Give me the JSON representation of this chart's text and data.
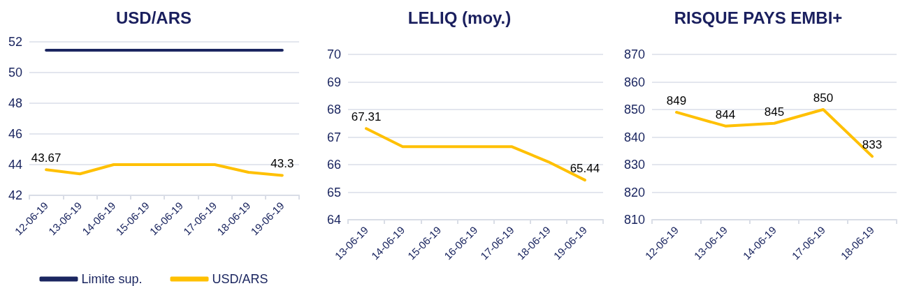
{
  "chart_data": [
    {
      "type": "line",
      "title": "USD/ARS",
      "categories": [
        "12-06-19",
        "13-06-19",
        "14-06-19",
        "15-06-19",
        "16-06-19",
        "17-06-19",
        "18-06-19",
        "19-06-19"
      ],
      "series": [
        {
          "name": "Limite sup.",
          "color": "#1b2660",
          "values": [
            51.45,
            51.45,
            51.45,
            51.45,
            51.45,
            51.45,
            51.45,
            51.45
          ]
        },
        {
          "name": "USD/ARS",
          "color": "#ffc000",
          "values": [
            43.67,
            43.4,
            44.0,
            44.0,
            44.0,
            44.0,
            43.5,
            43.3
          ],
          "value_labels": [
            "43.67",
            null,
            null,
            null,
            null,
            null,
            null,
            "43.3"
          ]
        }
      ],
      "ylim": [
        42,
        52
      ],
      "yticks": [
        42,
        44,
        46,
        48,
        50,
        52
      ],
      "grid": "y",
      "legend": "bottom",
      "marker": "none",
      "line_style": "solid"
    },
    {
      "type": "line",
      "title": "LELIQ (moy.)",
      "categories": [
        "13-06-19",
        "14-06-19",
        "15-06-19",
        "16-06-19",
        "17-06-19",
        "18-06-19",
        "19-06-19"
      ],
      "series": [
        {
          "color": "#ffc000",
          "values": [
            67.31,
            66.65,
            66.65,
            66.65,
            66.65,
            66.1,
            65.44
          ],
          "value_labels": [
            "67.31",
            null,
            null,
            null,
            null,
            null,
            "65.44"
          ]
        }
      ],
      "ylim": [
        64,
        70
      ],
      "yticks": [
        64,
        65,
        66,
        67,
        68,
        69,
        70
      ],
      "grid": "y",
      "legend": false,
      "marker": "none",
      "line_style": "solid"
    },
    {
      "type": "line",
      "title": "RISQUE PAYS EMBI+",
      "categories": [
        "12-06-19",
        "13-06-19",
        "14-06-19",
        "17-06-19",
        "18-06-19"
      ],
      "series": [
        {
          "color": "#ffc000",
          "values": [
            849,
            844,
            845,
            850,
            833
          ]
        }
      ],
      "data_labels": true,
      "ylim": [
        810,
        870
      ],
      "yticks": [
        810,
        820,
        830,
        840,
        850,
        860,
        870
      ],
      "grid": "y",
      "legend": false,
      "marker": "none",
      "line_style": "solid"
    }
  ]
}
